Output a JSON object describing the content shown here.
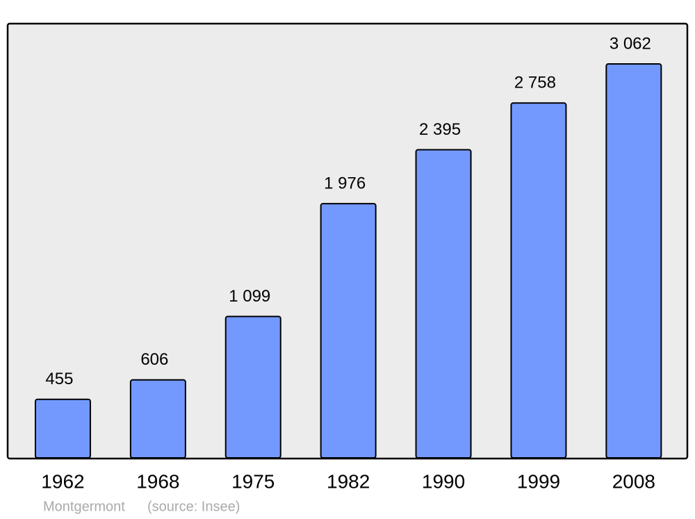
{
  "chart_data": {
    "type": "bar",
    "categories": [
      "1962",
      "1968",
      "1975",
      "1982",
      "1990",
      "1999",
      "2008"
    ],
    "values": [
      455,
      606,
      1099,
      1976,
      2395,
      2758,
      3062
    ],
    "value_labels": [
      "455",
      "606",
      "1 099",
      "1 976",
      "2 395",
      "2 758",
      "3 062"
    ],
    "color": "#7399ff",
    "caption": "Montgermont",
    "source": "(source: Insee)"
  }
}
